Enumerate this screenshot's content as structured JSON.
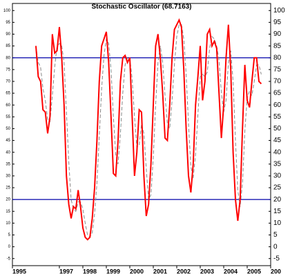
{
  "chart_data": {
    "type": "line",
    "title": "Stochastic Oscillator (68.7163)",
    "x": [
      1996.0,
      1996.1,
      1996.2,
      1996.3,
      1996.4,
      1996.5,
      1996.6,
      1996.7,
      1996.8,
      1996.9,
      1997.0,
      1997.1,
      1997.2,
      1997.3,
      1997.4,
      1997.5,
      1997.6,
      1997.7,
      1997.8,
      1997.9,
      1998.0,
      1998.1,
      1998.2,
      1998.3,
      1998.4,
      1998.5,
      1998.6,
      1998.7,
      1998.8,
      1998.9,
      1999.0,
      1999.1,
      1999.2,
      1999.3,
      1999.4,
      1999.5,
      1999.6,
      1999.7,
      1999.8,
      1999.9,
      2000.0,
      2000.1,
      2000.2,
      2000.3,
      2000.4,
      2000.5,
      2000.6,
      2000.7,
      2000.8,
      2000.9,
      2001.0,
      2001.1,
      2001.2,
      2001.3,
      2001.4,
      2001.5,
      2001.6,
      2001.7,
      2001.8,
      2001.9,
      2002.0,
      2002.1,
      2002.2,
      2002.3,
      2002.4,
      2002.5,
      2002.6,
      2002.7,
      2002.8,
      2002.9,
      2003.0,
      2003.1,
      2003.2,
      2003.3,
      2003.4,
      2003.5,
      2003.6,
      2003.7,
      2003.8,
      2003.9,
      2004.0,
      2004.1,
      2004.2,
      2004.3,
      2004.4,
      2004.5,
      2004.6,
      2004.7,
      2004.8,
      2004.9,
      2005.0,
      2005.1,
      2005.2,
      2005.3,
      2005.4,
      2005.5,
      2005.6
    ],
    "series": [
      {
        "color": "#ff0000",
        "dash": false,
        "values": [
          85,
          72,
          70,
          58,
          57,
          48,
          55,
          90,
          82,
          83,
          93,
          80,
          60,
          30,
          18,
          12,
          17,
          16,
          24,
          17,
          8,
          4,
          3,
          4,
          12,
          25,
          45,
          70,
          85,
          88,
          91,
          78,
          55,
          31,
          30,
          45,
          70,
          80,
          81,
          78,
          80,
          55,
          30,
          40,
          58,
          57,
          30,
          13,
          18,
          35,
          60,
          85,
          90,
          80,
          65,
          46,
          45,
          60,
          80,
          92,
          94,
          96,
          93,
          75,
          50,
          30,
          23,
          35,
          60,
          72,
          85,
          62,
          70,
          90,
          92,
          85,
          87,
          84,
          65,
          46,
          60,
          80,
          94,
          75,
          40,
          20,
          11,
          20,
          50,
          77,
          62,
          59,
          70,
          80,
          80,
          70,
          69
        ]
      },
      {
        "color": "#888888",
        "dash": true,
        "values": [
          85,
          78,
          76,
          67,
          62,
          54,
          53,
          64,
          76,
          85,
          86,
          85,
          78,
          57,
          36,
          20,
          16,
          15,
          19,
          19,
          16,
          10,
          5,
          4,
          6,
          14,
          27,
          47,
          67,
          81,
          88,
          86,
          75,
          55,
          39,
          35,
          48,
          65,
          77,
          80,
          80,
          71,
          55,
          42,
          43,
          52,
          48,
          33,
          20,
          22,
          38,
          60,
          78,
          85,
          78,
          64,
          52,
          50,
          62,
          77,
          89,
          94,
          94,
          88,
          73,
          52,
          34,
          29,
          39,
          56,
          72,
          73,
          72,
          74,
          84,
          89,
          88,
          85,
          79,
          65,
          57,
          62,
          78,
          83,
          70,
          45,
          24,
          17,
          27,
          49,
          63,
          66,
          64,
          70,
          77,
          77,
          73
        ]
      }
    ],
    "reference_lines": [
      80,
      20
    ],
    "reference_color": "#0000aa",
    "xlim": [
      1995.0,
      2006.0
    ],
    "xticks": [
      1995,
      1997,
      1998,
      1999,
      2000,
      2001,
      2002,
      2003,
      2004,
      2005,
      {
        "value": 2006,
        "label": "200"
      }
    ],
    "ylim": [
      -8,
      103
    ],
    "yticks": [
      -5,
      0,
      5,
      10,
      15,
      20,
      25,
      30,
      35,
      40,
      45,
      50,
      55,
      60,
      65,
      70,
      75,
      80,
      85,
      90,
      95,
      100
    ]
  }
}
